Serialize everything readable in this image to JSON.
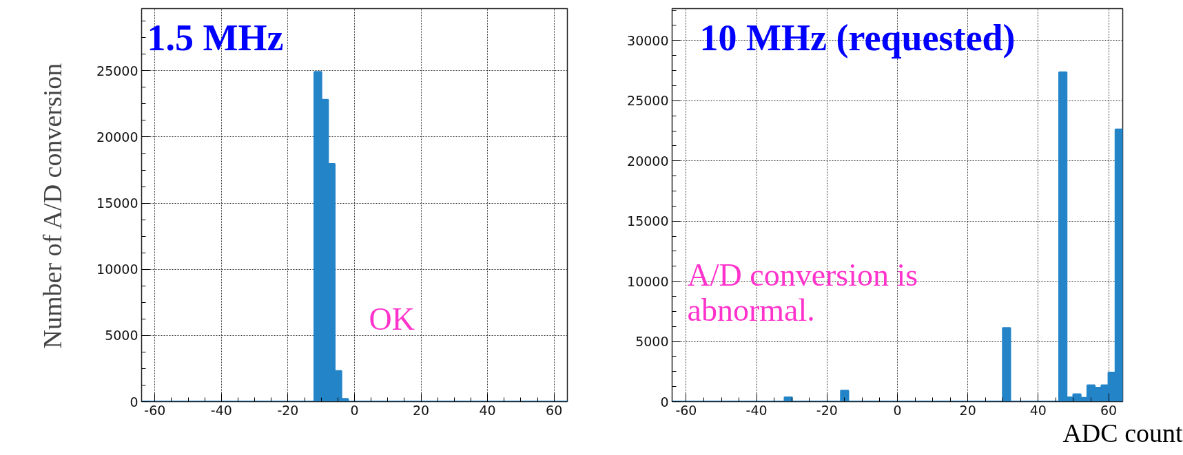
{
  "chart_data": [
    {
      "type": "histogram",
      "title": "1.5 MHz",
      "ylabel": "Number of A/D conversion",
      "annotations": [
        "OK"
      ],
      "bins": [
        -64,
        -62,
        -60,
        -58,
        -56,
        -54,
        -52,
        -50,
        -48,
        -46,
        -44,
        -42,
        -40,
        -38,
        -36,
        -34,
        -32,
        -30,
        -28,
        -26,
        -24,
        -22,
        -20,
        -18,
        -16,
        -14,
        -12,
        -10,
        -8,
        -6,
        -4,
        -2,
        0,
        2,
        4,
        6,
        8,
        10,
        12,
        14,
        16,
        18,
        20,
        22,
        24,
        26,
        28,
        30,
        32,
        34,
        36,
        38,
        40,
        42,
        44,
        46,
        48,
        50,
        52,
        54,
        56,
        58,
        60,
        62,
        64
      ],
      "values": [
        0,
        0,
        0,
        0,
        0,
        0,
        0,
        0,
        0,
        0,
        0,
        0,
        0,
        0,
        0,
        0,
        0,
        0,
        0,
        0,
        0,
        0,
        0,
        0,
        0,
        0,
        24900,
        22800,
        17950,
        2300,
        200,
        0,
        0,
        0,
        0,
        0,
        0,
        0,
        0,
        0,
        0,
        0,
        0,
        0,
        0,
        0,
        0,
        0,
        0,
        0,
        0,
        0,
        0,
        0,
        0,
        0,
        0,
        0,
        0,
        0,
        0,
        0,
        0,
        0
      ],
      "color": "#2484c8",
      "xlim": [
        -64,
        64
      ],
      "ylim": [
        0,
        29700
      ],
      "xticks": [
        -60,
        -40,
        -20,
        0,
        20,
        40,
        60
      ],
      "yticks": [
        0,
        5000,
        10000,
        15000,
        20000,
        25000
      ],
      "grid": true
    },
    {
      "type": "histogram",
      "title": "10 MHz (requested)",
      "xlabel": "ADC count",
      "annotations": [
        "A/D conversion is\nabnormal."
      ],
      "bins": [
        -64,
        -62,
        -60,
        -58,
        -56,
        -54,
        -52,
        -50,
        -48,
        -46,
        -44,
        -42,
        -40,
        -38,
        -36,
        -34,
        -32,
        -30,
        -28,
        -26,
        -24,
        -22,
        -20,
        -18,
        -16,
        -14,
        -12,
        -10,
        -8,
        -6,
        -4,
        -2,
        0,
        2,
        4,
        6,
        8,
        10,
        12,
        14,
        16,
        18,
        20,
        22,
        24,
        26,
        28,
        30,
        32,
        34,
        36,
        38,
        40,
        42,
        44,
        46,
        48,
        50,
        52,
        54,
        56,
        58,
        60,
        62,
        64
      ],
      "values": [
        0,
        0,
        0,
        0,
        0,
        0,
        0,
        0,
        0,
        0,
        0,
        0,
        0,
        0,
        0,
        0,
        350,
        0,
        0,
        0,
        0,
        0,
        0,
        0,
        900,
        0,
        0,
        0,
        0,
        0,
        0,
        0,
        0,
        0,
        0,
        0,
        0,
        0,
        0,
        0,
        0,
        0,
        0,
        0,
        0,
        0,
        0,
        6100,
        0,
        0,
        0,
        0,
        0,
        0,
        0,
        27350,
        350,
        600,
        300,
        1350,
        1150,
        1350,
        2400,
        22600
      ],
      "color": "#2484c8",
      "xlim": [
        -64,
        64
      ],
      "ylim": [
        0,
        32650
      ],
      "xticks": [
        -60,
        -40,
        -20,
        0,
        20,
        40,
        60
      ],
      "yticks": [
        0,
        5000,
        10000,
        15000,
        20000,
        25000,
        30000
      ],
      "grid": true
    }
  ]
}
